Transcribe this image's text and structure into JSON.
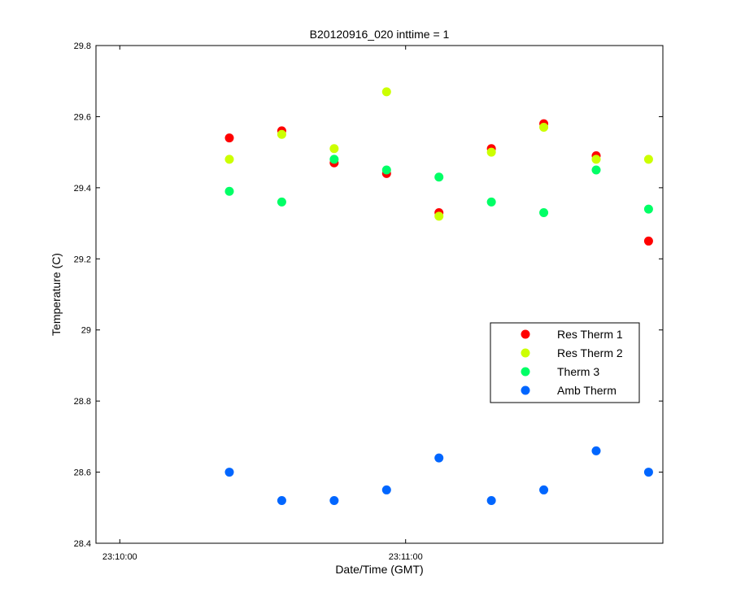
{
  "chart_data": {
    "type": "scatter",
    "title": "B20120916_020 inttime = 1",
    "xlabel": "Date/Time (GMT)",
    "ylabel": "Temperature (C)",
    "xlim": [
      "23:09:55",
      "23:11:54"
    ],
    "ylim": [
      28.4,
      29.8
    ],
    "x_ticks": [
      "23:10:00",
      "23:11:00"
    ],
    "y_ticks": [
      "28.4",
      "28.6",
      "28.8",
      "29",
      "29.2",
      "29.4",
      "29.6",
      "29.8"
    ],
    "grid": false,
    "legend_position": "right",
    "x": [
      "23:10:23",
      "23:10:34",
      "23:10:45",
      "23:10:56",
      "23:11:07",
      "23:11:18",
      "23:11:29",
      "23:11:40",
      "23:11:51"
    ],
    "series": [
      {
        "name": "Res Therm 1",
        "color": "#ff0000",
        "values": [
          29.54,
          29.56,
          29.47,
          29.44,
          29.33,
          29.51,
          29.58,
          29.49,
          29.25
        ]
      },
      {
        "name": "Res Therm 2",
        "color": "#ccff00",
        "values": [
          29.48,
          29.55,
          29.51,
          29.67,
          29.32,
          29.5,
          29.57,
          29.48,
          29.48
        ]
      },
      {
        "name": "Therm 3",
        "color": "#00ff66",
        "values": [
          29.39,
          29.36,
          29.48,
          29.45,
          29.43,
          29.36,
          29.33,
          29.45,
          29.34
        ]
      },
      {
        "name": "Amb Therm",
        "color": "#0066ff",
        "values": [
          28.6,
          28.52,
          28.52,
          28.55,
          28.64,
          28.52,
          28.55,
          28.66,
          28.6
        ]
      }
    ]
  }
}
